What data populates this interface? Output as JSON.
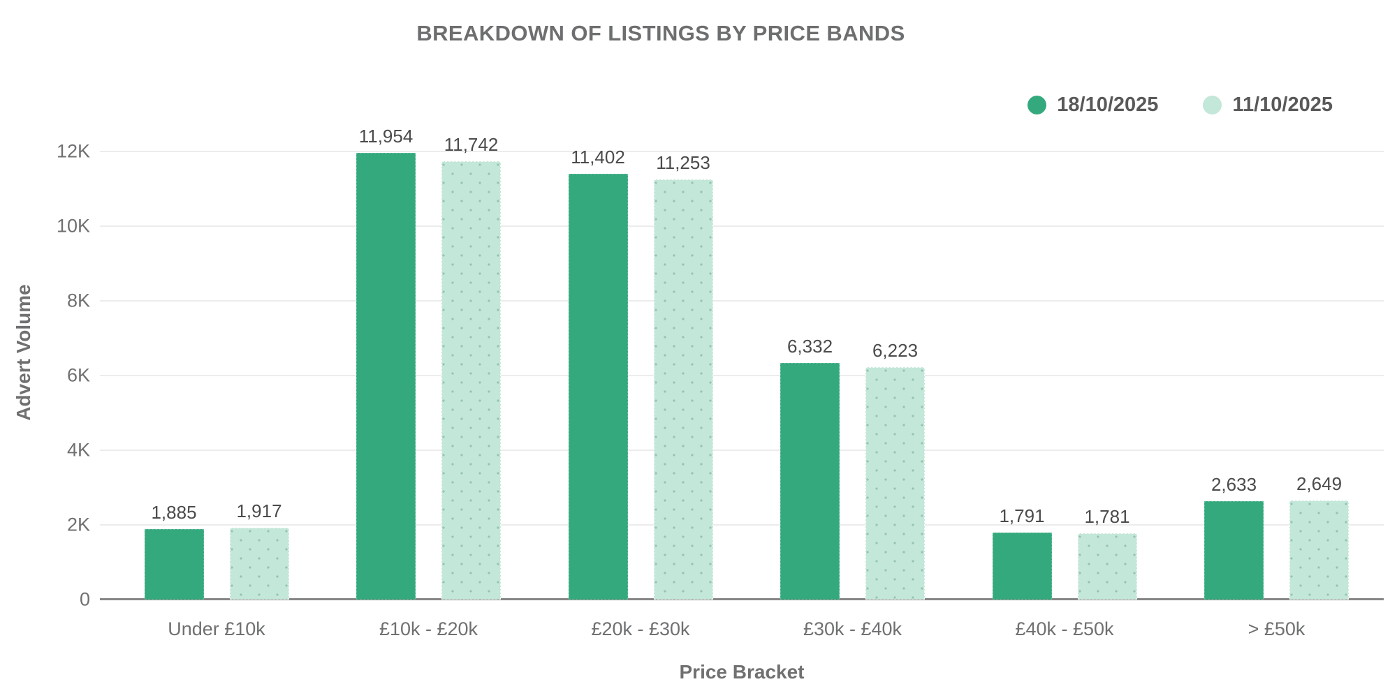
{
  "title": "BREAKDOWN OF LISTINGS BY PRICE BANDS",
  "chart_data": {
    "type": "bar",
    "title": "BREAKDOWN OF LISTINGS BY PRICE BANDS",
    "xlabel": "Price Bracket",
    "ylabel": "Advert Volume",
    "categories": [
      "Under £10k",
      "£10k - £20k",
      "£20k - £30k",
      "£30k - £40k",
      "£40k - £50k",
      "> £50k"
    ],
    "series": [
      {
        "name": "18/10/2025",
        "color": "#35a97e",
        "style": "solid",
        "values": [
          1885,
          11954,
          11402,
          6332,
          1791,
          2633
        ],
        "labels": [
          "1,885",
          "11,954",
          "11,402",
          "6,332",
          "1,791",
          "2,633"
        ]
      },
      {
        "name": "11/10/2025",
        "color": "#c3e7d8",
        "style": "dotted",
        "values": [
          1917,
          11742,
          11253,
          6223,
          1781,
          2649
        ],
        "labels": [
          "1,917",
          "11,742",
          "11,253",
          "6,223",
          "1,781",
          "2,649"
        ]
      }
    ],
    "yticks": [
      {
        "value": 0,
        "label": "0"
      },
      {
        "value": 2000,
        "label": "2K"
      },
      {
        "value": 4000,
        "label": "4K"
      },
      {
        "value": 6000,
        "label": "6K"
      },
      {
        "value": 8000,
        "label": "8K"
      },
      {
        "value": 10000,
        "label": "10K"
      },
      {
        "value": 12000,
        "label": "12K"
      }
    ],
    "ylim": [
      0,
      12000
    ],
    "grid": "horizontal",
    "legend_position": "top-right"
  },
  "colors": {
    "series_solid": "#35a97e",
    "series_dotted": "#c3e7d8",
    "gridline": "#ececec",
    "axis_line": "#868686",
    "title_text": "#6d6e70",
    "tick_text": "#6f7072",
    "data_label_text": "#4b4b4b",
    "legend_text": "#58595b",
    "background": "#ffffff"
  }
}
